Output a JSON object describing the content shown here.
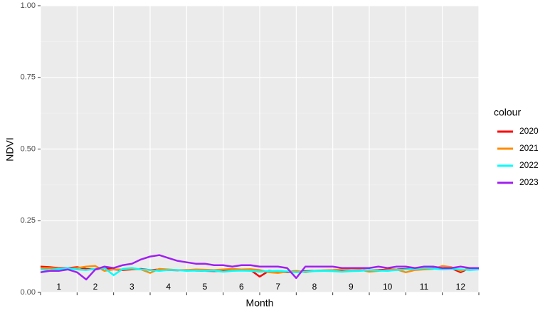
{
  "chart_data": {
    "type": "line",
    "x_label": "Month",
    "y_label": "NDVI",
    "legend_title": "colour",
    "categories": [
      "1",
      "2",
      "3",
      "4",
      "5",
      "6",
      "7",
      "8",
      "9",
      "10",
      "11",
      "12"
    ],
    "x": [
      1,
      1.25,
      1.5,
      1.75,
      2,
      2.25,
      2.5,
      2.75,
      3,
      3.25,
      3.5,
      3.75,
      4,
      4.25,
      4.5,
      4.75,
      5,
      5.25,
      5.5,
      5.75,
      6,
      6.25,
      6.5,
      6.75,
      7,
      7.25,
      7.5,
      7.75,
      8,
      8.25,
      8.5,
      8.75,
      9,
      9.25,
      9.5,
      9.75,
      10,
      10.25,
      10.5,
      10.75,
      11,
      11.25,
      11.5,
      11.75,
      12,
      12.25,
      12.5,
      12.75,
      13
    ],
    "xlim": [
      1,
      13
    ],
    "xticks": [
      1,
      2,
      3,
      4,
      5,
      6,
      7,
      8,
      9,
      10,
      11,
      12,
      13
    ],
    "ylim": [
      0,
      1
    ],
    "yticks": [
      {
        "value": 0,
        "label": "0.00"
      },
      {
        "value": 0.25,
        "label": "0.25"
      },
      {
        "value": 0.5,
        "label": "0.50"
      },
      {
        "value": 0.75,
        "label": "0.75"
      },
      {
        "value": 1,
        "label": "1.00"
      }
    ],
    "grid": true,
    "series": [
      {
        "name": "2020",
        "color": "#ff0000",
        "values": [
          0.09,
          0.088,
          0.085,
          0.085,
          0.088,
          0.082,
          0.08,
          0.085,
          0.08,
          0.078,
          0.08,
          0.082,
          0.078,
          0.08,
          0.078,
          0.077,
          0.078,
          0.076,
          0.075,
          0.074,
          0.075,
          0.076,
          0.078,
          0.078,
          0.055,
          0.075,
          0.072,
          0.07,
          0.072,
          0.074,
          0.075,
          0.076,
          0.075,
          0.074,
          0.076,
          0.078,
          0.077,
          0.078,
          0.08,
          0.08,
          0.082,
          0.083,
          0.085,
          0.086,
          0.085,
          0.084,
          0.07,
          0.085,
          0.083
        ]
      },
      {
        "name": "2021",
        "color": "#ff8c00",
        "values": [
          0.085,
          0.085,
          0.083,
          0.082,
          0.085,
          0.09,
          0.092,
          0.075,
          0.08,
          0.08,
          0.082,
          0.08,
          0.068,
          0.082,
          0.08,
          0.078,
          0.078,
          0.08,
          0.079,
          0.078,
          0.08,
          0.082,
          0.08,
          0.081,
          0.078,
          0.07,
          0.068,
          0.072,
          0.075,
          0.07,
          0.075,
          0.077,
          0.078,
          0.08,
          0.078,
          0.079,
          0.072,
          0.075,
          0.078,
          0.08,
          0.07,
          0.078,
          0.08,
          0.082,
          0.092,
          0.088,
          0.075,
          0.085,
          0.08
        ]
      },
      {
        "name": "2022",
        "color": "#00ffff",
        "values": [
          0.08,
          0.078,
          0.082,
          0.085,
          0.08,
          0.078,
          0.082,
          0.085,
          0.06,
          0.082,
          0.085,
          0.08,
          0.078,
          0.075,
          0.078,
          0.078,
          0.075,
          0.076,
          0.075,
          0.076,
          0.072,
          0.075,
          0.076,
          0.075,
          0.072,
          0.074,
          0.075,
          0.073,
          0.07,
          0.072,
          0.074,
          0.075,
          0.074,
          0.072,
          0.074,
          0.075,
          0.078,
          0.076,
          0.075,
          0.078,
          0.08,
          0.082,
          0.085,
          0.083,
          0.08,
          0.082,
          0.08,
          0.078,
          0.08
        ]
      },
      {
        "name": "2023",
        "color": "#a020f0",
        "values": [
          0.07,
          0.075,
          0.075,
          0.08,
          0.07,
          0.045,
          0.08,
          0.09,
          0.085,
          0.095,
          0.1,
          0.115,
          0.125,
          0.13,
          0.12,
          0.11,
          0.105,
          0.1,
          0.1,
          0.095,
          0.095,
          0.09,
          0.095,
          0.095,
          0.09,
          0.09,
          0.09,
          0.085,
          0.05,
          0.09,
          0.09,
          0.09,
          0.09,
          0.085,
          0.085,
          0.085,
          0.085,
          0.09,
          0.085,
          0.09,
          0.09,
          0.085,
          0.09,
          0.09,
          0.085,
          0.085,
          0.09,
          0.085,
          0.085
        ]
      }
    ]
  }
}
